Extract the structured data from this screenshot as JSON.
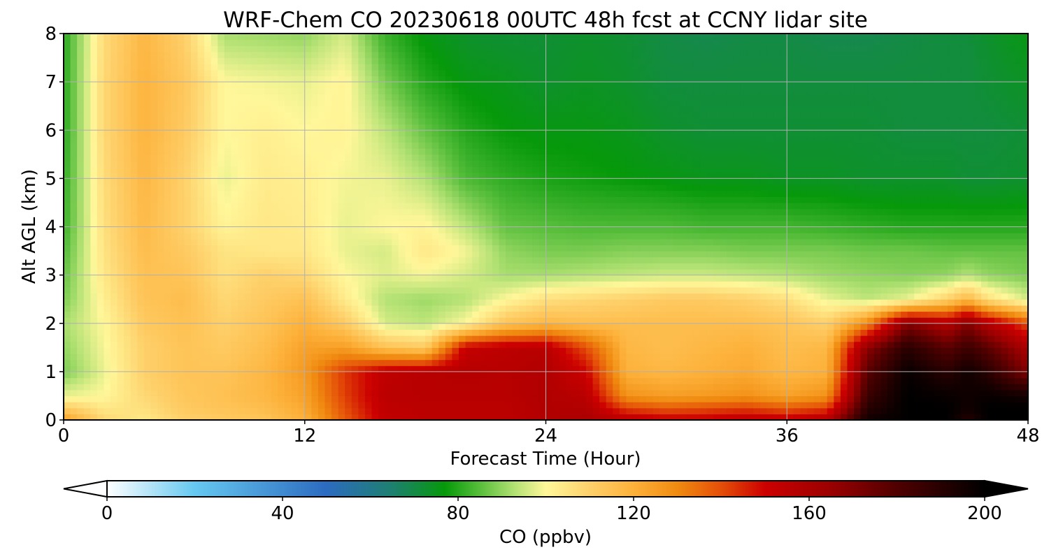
{
  "chart_data": {
    "type": "heatmap",
    "title": "WRF-Chem CO  20230618 00UTC 48h fcst at CCNY lidar site",
    "xlabel": "Forecast Time (Hour)",
    "ylabel": "Alt AGL (km)",
    "x_ticks": [
      "0",
      "12",
      "24",
      "36",
      "48"
    ],
    "y_ticks": [
      "0",
      "1",
      "2",
      "3",
      "4",
      "5",
      "6",
      "7",
      "8"
    ],
    "xlim": [
      0,
      48
    ],
    "ylim": [
      0,
      8
    ],
    "grid": true,
    "colorbar": {
      "label": "CO  (ppbv)",
      "ticks": [
        "0",
        "40",
        "80",
        "120",
        "160",
        "200"
      ],
      "range": [
        0,
        200
      ],
      "extend": "both",
      "colors": [
        {
          "value": 0,
          "color": "#ffffff"
        },
        {
          "value": 20,
          "color": "#66c8f0"
        },
        {
          "value": 50,
          "color": "#2c6bc0"
        },
        {
          "value": 65,
          "color": "#1e8070"
        },
        {
          "value": 77,
          "color": "#06990a"
        },
        {
          "value": 85,
          "color": "#58be3c"
        },
        {
          "value": 93,
          "color": "#b4e274"
        },
        {
          "value": 100,
          "color": "#fff79a"
        },
        {
          "value": 110,
          "color": "#fed06a"
        },
        {
          "value": 120,
          "color": "#fdb13a"
        },
        {
          "value": 130,
          "color": "#f08a10"
        },
        {
          "value": 140,
          "color": "#e44e08"
        },
        {
          "value": 150,
          "color": "#cc0000"
        },
        {
          "value": 165,
          "color": "#9a0000"
        },
        {
          "value": 180,
          "color": "#500000"
        },
        {
          "value": 200,
          "color": "#000000"
        }
      ]
    },
    "times": [
      0,
      2,
      4,
      6,
      8,
      10,
      12,
      14,
      16,
      18,
      20,
      22,
      24,
      26,
      28,
      30,
      32,
      34,
      36,
      38,
      40,
      42,
      44,
      45,
      46,
      48
    ],
    "altitudes": [
      0,
      0.25,
      0.5,
      1,
      1.5,
      2,
      2.5,
      3,
      3.5,
      4,
      5,
      6,
      7,
      8
    ],
    "values": [
      [
        125,
        108,
        104,
        110,
        112,
        114,
        120,
        138,
        153,
        155,
        155,
        155,
        158,
        160,
        155,
        152,
        152,
        155,
        153,
        158,
        196,
        200,
        200,
        190,
        200,
        200
      ],
      [
        112,
        104,
        106,
        112,
        114,
        116,
        122,
        140,
        154,
        155,
        155,
        155,
        158,
        158,
        142,
        138,
        140,
        142,
        138,
        142,
        190,
        200,
        200,
        196,
        200,
        200
      ],
      [
        98,
        100,
        108,
        113,
        115,
        118,
        124,
        142,
        155,
        156,
        156,
        156,
        158,
        156,
        128,
        125,
        126,
        128,
        124,
        128,
        185,
        200,
        198,
        196,
        198,
        195
      ],
      [
        88,
        98,
        110,
        114,
        114,
        118,
        126,
        143,
        154,
        156,
        157,
        156,
        158,
        150,
        120,
        118,
        120,
        122,
        118,
        120,
        178,
        198,
        190,
        196,
        190,
        170
      ],
      [
        90,
        99,
        110,
        114,
        112,
        116,
        124,
        125,
        115,
        112,
        152,
        155,
        156,
        140,
        118,
        116,
        118,
        120,
        116,
        118,
        168,
        190,
        178,
        185,
        178,
        160
      ],
      [
        92,
        100,
        112,
        115,
        110,
        114,
        120,
        112,
        96,
        94,
        100,
        114,
        118,
        116,
        116,
        116,
        116,
        116,
        114,
        110,
        130,
        170,
        158,
        170,
        158,
        140
      ],
      [
        88,
        102,
        114,
        116,
        108,
        112,
        115,
        103,
        93,
        91,
        93,
        100,
        106,
        108,
        110,
        112,
        112,
        110,
        106,
        98,
        94,
        98,
        110,
        118,
        106,
        96
      ],
      [
        86,
        104,
        115,
        114,
        106,
        110,
        108,
        100,
        97,
        99,
        96,
        92,
        92,
        93,
        94,
        95,
        95,
        94,
        93,
        91,
        90,
        89,
        90,
        93,
        90,
        88
      ],
      [
        84,
        105,
        116,
        112,
        105,
        104,
        104,
        98,
        96,
        104,
        99,
        90,
        88,
        88,
        89,
        89,
        89,
        88,
        88,
        88,
        87,
        87,
        86,
        86,
        86,
        86
      ],
      [
        82,
        106,
        117,
        110,
        101,
        104,
        103,
        98,
        100,
        101,
        94,
        86,
        85,
        84,
        84,
        84,
        83,
        83,
        83,
        82,
        81,
        80,
        80,
        80,
        80,
        80
      ],
      [
        81,
        107,
        118,
        110,
        98,
        103,
        102,
        99,
        98,
        93,
        84,
        81,
        79,
        78,
        77,
        76,
        75,
        75,
        74,
        74,
        73,
        73,
        73,
        72,
        72,
        73
      ],
      [
        80,
        108,
        119,
        112,
        100,
        102,
        100,
        101,
        94,
        86,
        80,
        77,
        76,
        76,
        75,
        73,
        72,
        72,
        72,
        72,
        72,
        71,
        71,
        71,
        71,
        72
      ],
      [
        80,
        108,
        119,
        113,
        100,
        99,
        98,
        101,
        88,
        80,
        76,
        75,
        73,
        74,
        73,
        71,
        71,
        71,
        71,
        71,
        71,
        71,
        71,
        71,
        72,
        74
      ],
      [
        80,
        107,
        118,
        110,
        92,
        91,
        90,
        96,
        82,
        76,
        73,
        72,
        72,
        73,
        72,
        70,
        69,
        70,
        70,
        69,
        69,
        70,
        71,
        71,
        73,
        76
      ]
    ]
  }
}
